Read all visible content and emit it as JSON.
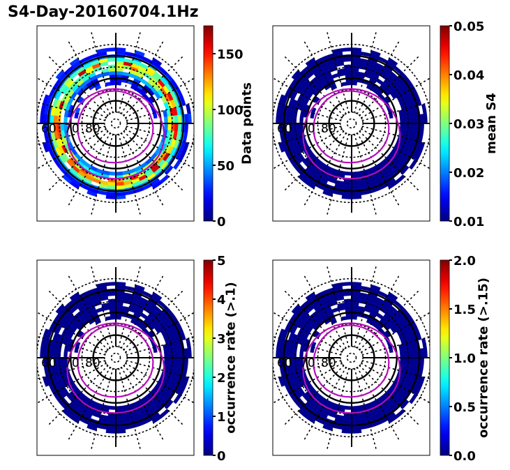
{
  "figure": {
    "title": "S4-Day-20160704.1Hz"
  },
  "chart_data": [
    {
      "type": "heatmap",
      "projection": "polar",
      "panel": "top-left",
      "colorbar": {
        "label": "Data points",
        "range": [
          0,
          175
        ],
        "ticks": [
          0,
          50,
          100,
          150
        ],
        "tick_labels": [
          "0",
          "50",
          "100",
          "150"
        ],
        "colormap": "jet"
      },
      "radial_labels": [
        "60",
        "70",
        "80"
      ],
      "latitude_circles_solid": [
        60,
        70,
        80
      ],
      "latitude_circles_dotted": [
        55,
        65,
        75,
        85,
        88
      ],
      "meridian_spacing_deg": 15,
      "contours": [
        "outer-oval",
        "inner-oval"
      ],
      "pattern": "dense"
    },
    {
      "type": "heatmap",
      "projection": "polar",
      "panel": "top-right",
      "colorbar": {
        "label": "mean S4",
        "range": [
          0.01,
          0.05
        ],
        "ticks": [
          0.01,
          0.02,
          0.03,
          0.04,
          0.05
        ],
        "tick_labels": [
          "0.01",
          "0.02",
          "0.03",
          "0.04",
          "0.05"
        ],
        "colormap": "jet"
      },
      "radial_labels": [
        "60",
        "70",
        "80"
      ],
      "latitude_circles_solid": [
        60,
        70,
        80
      ],
      "latitude_circles_dotted": [
        55,
        65,
        75,
        85,
        88
      ],
      "meridian_spacing_deg": 15,
      "contours": [
        "outer-oval",
        "inner-oval"
      ],
      "pattern": "uniform-low"
    },
    {
      "type": "heatmap",
      "projection": "polar",
      "panel": "bottom-left",
      "colorbar": {
        "label": "occurrence rate (>.1)",
        "range": [
          0,
          5
        ],
        "ticks": [
          0,
          1,
          2,
          3,
          4,
          5
        ],
        "tick_labels": [
          "0",
          "1",
          "2",
          "3",
          "4",
          "5"
        ],
        "colormap": "jet"
      },
      "radial_labels": [
        "60",
        "70",
        "80"
      ],
      "latitude_circles_solid": [
        60,
        70,
        80
      ],
      "latitude_circles_dotted": [
        55,
        65,
        75,
        85,
        88
      ],
      "meridian_spacing_deg": 15,
      "contours": [
        "outer-oval",
        "inner-oval"
      ],
      "pattern": "uniform-low"
    },
    {
      "type": "heatmap",
      "projection": "polar",
      "panel": "bottom-right",
      "colorbar": {
        "label": "occurrence rate (>.15)",
        "range": [
          0.0,
          2.0
        ],
        "ticks": [
          0.0,
          0.5,
          1.0,
          1.5,
          2.0
        ],
        "tick_labels": [
          "0.0",
          "0.5",
          "1.0",
          "1.5",
          "2.0"
        ],
        "colormap": "jet"
      },
      "radial_labels": [
        "60",
        "70",
        "80"
      ],
      "latitude_circles_solid": [
        60,
        70,
        80
      ],
      "latitude_circles_dotted": [
        55,
        65,
        75,
        85,
        88
      ],
      "meridian_spacing_deg": 15,
      "contours": [
        "outer-oval",
        "inner-oval"
      ],
      "pattern": "uniform-low"
    }
  ],
  "colors": {
    "contour": "#b30fb8",
    "grid": "#000000",
    "low_bin": "#00008f"
  }
}
